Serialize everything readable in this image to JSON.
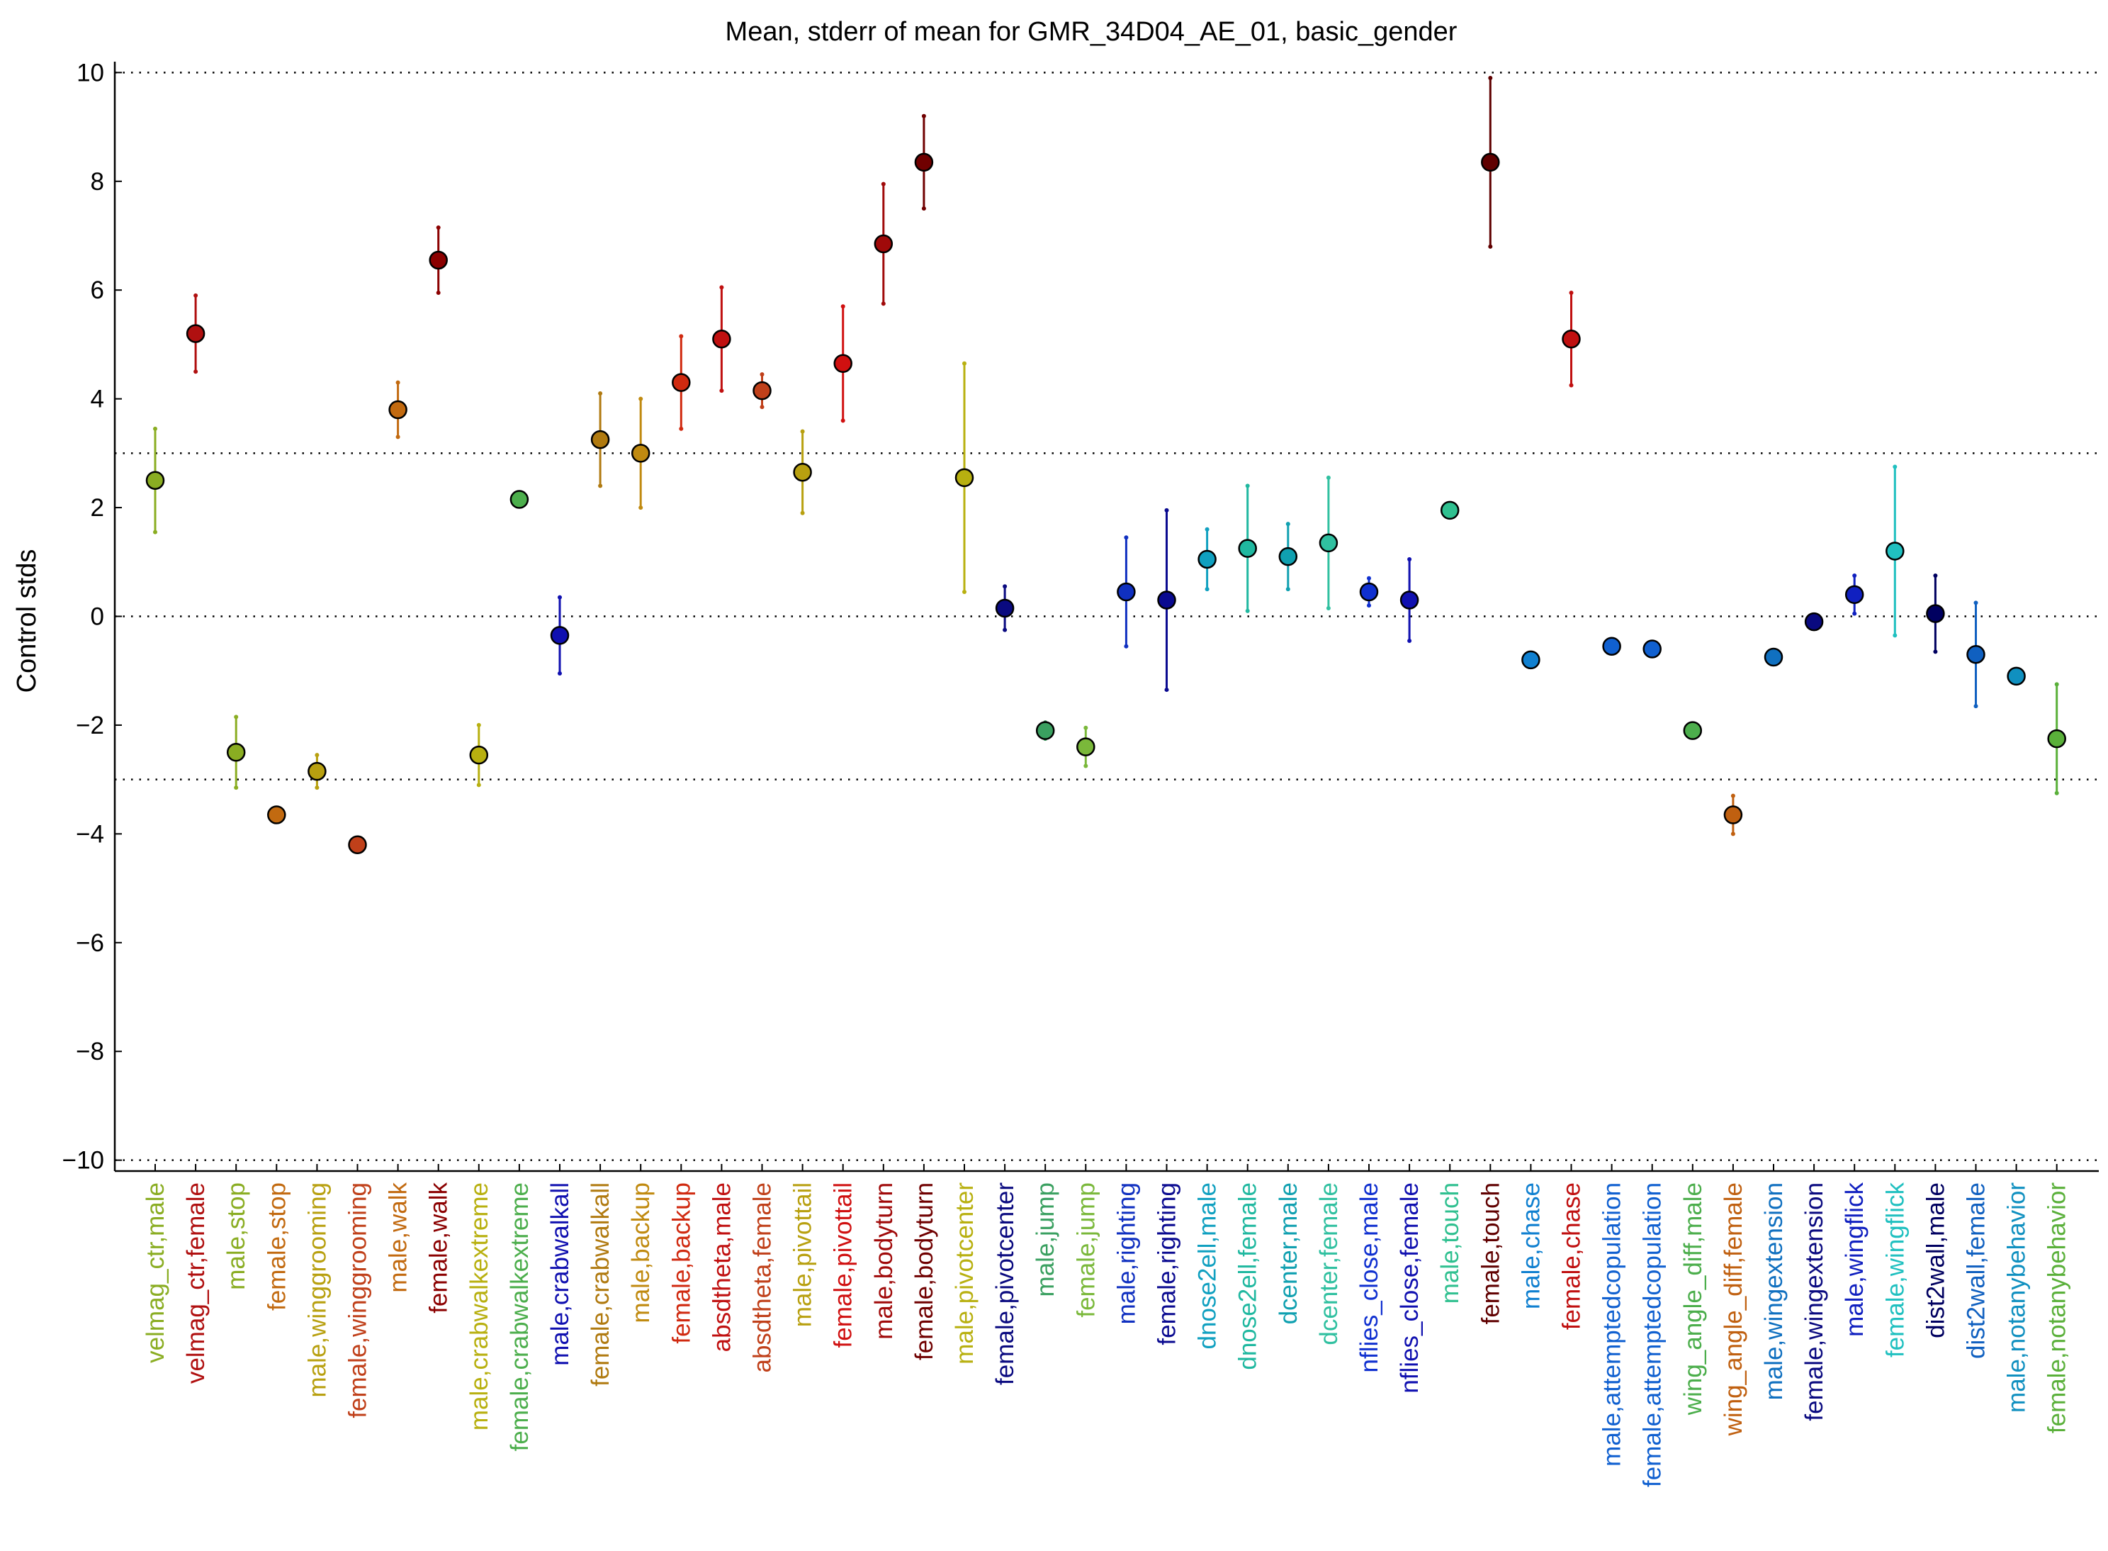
{
  "chart_data": {
    "type": "scatter",
    "title": "Mean, stderr of mean for GMR_34D04_AE_01, basic_gender",
    "xlabel": "",
    "ylabel": "Control stds",
    "ylim": [
      -10.2,
      10.2
    ],
    "yticks": [
      10,
      8,
      6,
      4,
      2,
      0,
      -2,
      -4,
      -6,
      -8,
      -10
    ],
    "ytick_labels": [
      "10",
      "8",
      "6",
      "4",
      "2",
      "0",
      "−2",
      "−4",
      "−6",
      "−8",
      "−10"
    ],
    "reference_lines": [
      10,
      3,
      0,
      -3,
      -10
    ],
    "grid": false,
    "legend": "none",
    "error_bars": "stderr of mean",
    "points": [
      {
        "label": "velmag_ctr,male",
        "mean": 2.5,
        "err": 0.95,
        "color": "#8aad22"
      },
      {
        "label": "velmag_ctr,female",
        "mean": 5.2,
        "err": 0.7,
        "color": "#b01010"
      },
      {
        "label": "male,stop",
        "mean": -2.5,
        "err": 0.65,
        "color": "#8aad22"
      },
      {
        "label": "female,stop",
        "mean": -3.65,
        "err": 0.05,
        "color": "#c26a10"
      },
      {
        "label": "male,winggrooming",
        "mean": -2.85,
        "err": 0.3,
        "color": "#b8a010"
      },
      {
        "label": "female,winggrooming",
        "mean": -4.2,
        "err": 0.05,
        "color": "#c0401a"
      },
      {
        "label": "male,walk",
        "mean": 3.8,
        "err": 0.5,
        "color": "#c26a10"
      },
      {
        "label": "female,walk",
        "mean": 6.55,
        "err": 0.6,
        "color": "#8b0000"
      },
      {
        "label": "male,crabwalkextreme",
        "mean": -2.55,
        "err": 0.55,
        "color": "#b8b010"
      },
      {
        "label": "female,crabwalkextreme",
        "mean": 2.15,
        "err": 0.05,
        "color": "#4cae4c"
      },
      {
        "label": "male,crabwalkall",
        "mean": -0.35,
        "err": 0.7,
        "color": "#1010b0"
      },
      {
        "label": "female,crabwalkall",
        "mean": 3.25,
        "err": 0.85,
        "color": "#b07a10"
      },
      {
        "label": "male,backup",
        "mean": 3.0,
        "err": 1.0,
        "color": "#c08a10"
      },
      {
        "label": "female,backup",
        "mean": 4.3,
        "err": 0.85,
        "color": "#d02a10"
      },
      {
        "label": "absdtheta,male",
        "mean": 5.1,
        "err": 0.95,
        "color": "#c01010"
      },
      {
        "label": "absdtheta,female",
        "mean": 4.15,
        "err": 0.3,
        "color": "#c0401a"
      },
      {
        "label": "male,pivottail",
        "mean": 2.65,
        "err": 0.75,
        "color": "#b8a010"
      },
      {
        "label": "female,pivottail",
        "mean": 4.65,
        "err": 1.05,
        "color": "#d01010"
      },
      {
        "label": "male,bodyturn",
        "mean": 6.85,
        "err": 1.1,
        "color": "#a00a0a"
      },
      {
        "label": "female,bodyturn",
        "mean": 8.35,
        "err": 0.85,
        "color": "#700000"
      },
      {
        "label": "male,pivotcenter",
        "mean": 2.55,
        "err": 2.1,
        "color": "#b8b010"
      },
      {
        "label": "female,pivotcenter",
        "mean": 0.15,
        "err": 0.4,
        "color": "#0a0a80"
      },
      {
        "label": "male,jump",
        "mean": -2.1,
        "err": 0.15,
        "color": "#3aa060"
      },
      {
        "label": "female,jump",
        "mean": -2.4,
        "err": 0.35,
        "color": "#7ab83a"
      },
      {
        "label": "male,righting",
        "mean": 0.45,
        "err": 1.0,
        "color": "#1030c0"
      },
      {
        "label": "female,righting",
        "mean": 0.3,
        "err": 1.65,
        "color": "#0a0a90"
      },
      {
        "label": "dnose2ell,male",
        "mean": 1.05,
        "err": 0.55,
        "color": "#10a0c0"
      },
      {
        "label": "dnose2ell,female",
        "mean": 1.25,
        "err": 1.15,
        "color": "#20b8a0"
      },
      {
        "label": "dcenter,male",
        "mean": 1.1,
        "err": 0.6,
        "color": "#10a0b0"
      },
      {
        "label": "dcenter,female",
        "mean": 1.35,
        "err": 1.2,
        "color": "#30c0a0"
      },
      {
        "label": "nflies_close,male",
        "mean": 0.45,
        "err": 0.25,
        "color": "#1030d0"
      },
      {
        "label": "nflies_close,female",
        "mean": 0.3,
        "err": 0.75,
        "color": "#1010b0"
      },
      {
        "label": "male,touch",
        "mean": 1.95,
        "err": 0.05,
        "color": "#30c090"
      },
      {
        "label": "female,touch",
        "mean": 8.35,
        "err": 1.55,
        "color": "#600000"
      },
      {
        "label": "male,chase",
        "mean": -0.8,
        "err": 0.05,
        "color": "#1080d0"
      },
      {
        "label": "female,chase",
        "mean": 5.1,
        "err": 0.85,
        "color": "#c01010"
      },
      {
        "label": "male,attemptedcopulation",
        "mean": -0.55,
        "err": 0.05,
        "color": "#1060d0"
      },
      {
        "label": "female,attemptedcopulation",
        "mean": -0.6,
        "err": 0.05,
        "color": "#1060d0"
      },
      {
        "label": "wing_angle_diff,male",
        "mean": -2.1,
        "err": 0.1,
        "color": "#4cae4c"
      },
      {
        "label": "wing_angle_diff,female",
        "mean": -3.65,
        "err": 0.35,
        "color": "#c06010"
      },
      {
        "label": "male,wingextension",
        "mean": -0.75,
        "err": 0.05,
        "color": "#1070c0"
      },
      {
        "label": "female,wingextension",
        "mean": -0.1,
        "err": 0.05,
        "color": "#0a0a80"
      },
      {
        "label": "male,wingflick",
        "mean": 0.4,
        "err": 0.35,
        "color": "#1020c0"
      },
      {
        "label": "female,wingflick",
        "mean": 1.2,
        "err": 1.55,
        "color": "#20c0c0"
      },
      {
        "label": "dist2wall,male",
        "mean": 0.05,
        "err": 0.7,
        "color": "#000060"
      },
      {
        "label": "dist2wall,female",
        "mean": -0.7,
        "err": 0.95,
        "color": "#1060c0"
      },
      {
        "label": "male,notanybehavior",
        "mean": -1.1,
        "err": 0.05,
        "color": "#1090c0"
      },
      {
        "label": "female,notanybehavior",
        "mean": -2.25,
        "err": 1.0,
        "color": "#5ab03a"
      }
    ]
  }
}
